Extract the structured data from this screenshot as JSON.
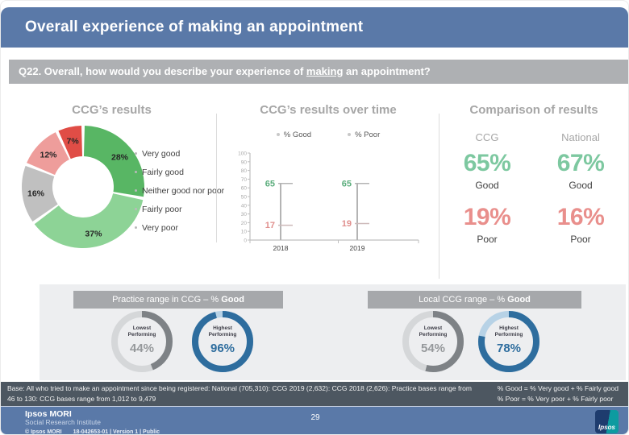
{
  "header": {
    "title": "Overall experience of making an appointment",
    "question": {
      "prefix": "Q22. Overall, how would you describe your experience of ",
      "underlined": "making",
      "suffix": " an appointment?"
    }
  },
  "colors": {
    "header_blue": "#5A79A8",
    "question_bar_gray": "#AEB0B3",
    "panel_gray": "#EDEEF0",
    "panel_header_gray": "#A6A8AB",
    "base_bar_slate": "#4D5761",
    "good_green": "#7DC8A0",
    "poor_red": "#E98F8C",
    "ring_blue": "#2E6D9E",
    "ring_gray": "#7E8286"
  },
  "chart_data": [
    {
      "type": "pie",
      "title": "CCG’s results",
      "labels": [
        "Very good",
        "Fairly good",
        "Neither good nor poor",
        "Fairly poor",
        "Very poor"
      ],
      "values": [
        28,
        37,
        16,
        12,
        7
      ],
      "unit": "%",
      "colors": [
        "#58B664",
        "#8DD396",
        "#C0C0C0",
        "#EE9D9B",
        "#E04D46"
      ],
      "donut": true
    },
    {
      "type": "line",
      "title": "CCG’s results over time",
      "x": [
        "2018",
        "2019"
      ],
      "series": [
        {
          "name": "% Good",
          "values": [
            65,
            65
          ],
          "color": "#5BAD7C"
        },
        {
          "name": "% Poor",
          "values": [
            17,
            19
          ],
          "color": "#E08F8D"
        }
      ],
      "ylim": [
        0,
        100
      ],
      "ytick_step": 10,
      "grid": false,
      "legend_position": "top"
    },
    {
      "type": "pie",
      "title": "Practice range in CCG – % Good",
      "rings": [
        {
          "label": "Lowest Performing",
          "value": 44,
          "display": "44%",
          "arc_color": "#7E8286",
          "track_color": "#D5D7D9",
          "value_color": "#95989B"
        },
        {
          "label": "Highest Performing",
          "value": 96,
          "display": "96%",
          "arc_color": "#2E6D9E",
          "track_color": "#B7D2E6",
          "value_color": "#2E6D9E"
        }
      ]
    },
    {
      "type": "pie",
      "title": "Local CCG range – % Good",
      "rings": [
        {
          "label": "Lowest Performing",
          "value": 54,
          "display": "54%",
          "arc_color": "#7E8286",
          "track_color": "#D5D7D9",
          "value_color": "#95989B"
        },
        {
          "label": "Highest Performing",
          "value": 78,
          "display": "78%",
          "arc_color": "#2E6D9E",
          "track_color": "#B7D2E6",
          "value_color": "#2E6D9E"
        }
      ]
    },
    {
      "type": "table",
      "title": "Comparison of results",
      "columns": [
        "CCG",
        "National"
      ],
      "rows": [
        {
          "metric": "Good",
          "CCG": "65%",
          "National": "67%"
        },
        {
          "metric": "Poor",
          "CCG": "19%",
          "National": "16%"
        }
      ]
    }
  ],
  "panels": {
    "practice": {
      "title_prefix": "Practice range in CCG – % ",
      "title_bold": "Good"
    },
    "local": {
      "title_prefix": "Local CCG range – % ",
      "title_bold": "Good"
    }
  },
  "footer": {
    "base_text": "Base: All who tried to make an appointment since being registered: National (705,310): CCG 2019 (2,632): CCG 2018 (2,626): Practice bases range from 46 to 130: CCG bases range from 1,012 to 9,479",
    "formula_good": "% Good = % Very good + % Fairly good",
    "formula_poor": "% Poor = % Very poor + % Fairly poor",
    "brand": "Ipsos MORI",
    "brand_sub": "Social Research Institute",
    "copyright": "© Ipsos MORI",
    "doc_ref": "18-042653-01 | Version 1 | Public",
    "page_number": "29",
    "logo_text": "Ipsos"
  }
}
